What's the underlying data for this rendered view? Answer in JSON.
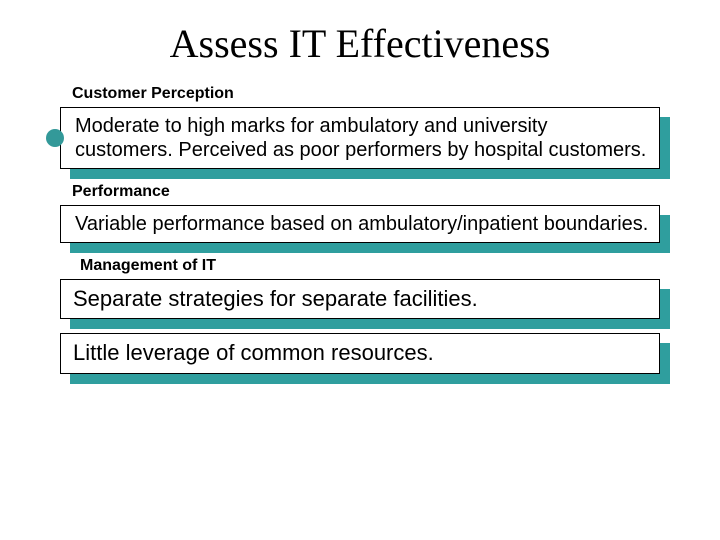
{
  "title": "Assess IT Effectiveness",
  "title_fontsize": 40,
  "title_font": "Times New Roman",
  "title_color": "#000000",
  "body_font": "Arial",
  "accent_color": "#2f9e9e",
  "box_border_color": "#000000",
  "box_bg_color": "#ffffff",
  "bullet_color": "#339999",
  "section_label_fontsize": 16,
  "section_label_weight": 700,
  "box_text_color": "#000000",
  "sections": {
    "customer": {
      "label": "Customer Perception",
      "text": "Moderate to high marks for ambulatory and university customers.  Perceived as poor performers by hospital customers.",
      "fontsize": 20
    },
    "performance": {
      "label": "Performance",
      "text": "Variable performance based on ambulatory/inpatient boundaries.",
      "fontsize": 20
    },
    "management": {
      "label": "Management of IT",
      "box1": "Separate strategies for separate facilities.",
      "box2": "Little leverage of common resources.",
      "fontsize": 22
    }
  }
}
